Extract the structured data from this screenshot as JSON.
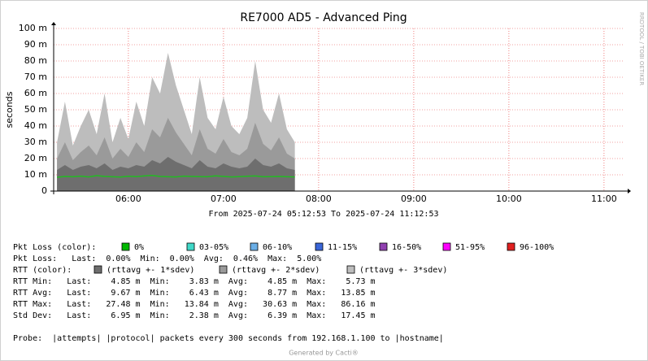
{
  "chart_data": {
    "type": "line",
    "title": "RE7000 AD5 - Advanced Ping",
    "y_label": "seconds",
    "side_label": "RRDTOOL / TOBI OETIKER",
    "time_caption": "From 2025-07-24 05:12:53 To 2025-07-24 11:12:53",
    "xlim": [
      "05:12:53",
      "11:12:53"
    ],
    "xticks": [
      "06:00",
      "07:00",
      "08:00",
      "09:00",
      "10:00",
      "11:00"
    ],
    "ylim": [
      0,
      0.1
    ],
    "yticks": [
      0,
      {
        "value": 0.01,
        "label": "10 m"
      },
      {
        "value": 0.02,
        "label": "20 m"
      },
      {
        "value": 0.03,
        "label": "30 m"
      },
      {
        "value": 0.04,
        "label": "40 m"
      },
      {
        "value": 0.05,
        "label": "50 m"
      },
      {
        "value": 0.06,
        "label": "60 m"
      },
      {
        "value": 0.07,
        "label": "70 m"
      },
      {
        "value": 0.08,
        "label": "80 m"
      },
      {
        "value": 0.09,
        "label": "90 m"
      },
      {
        "value": 0.1,
        "label": "100 m"
      }
    ],
    "grid": true,
    "x": [
      "05:15",
      "05:20",
      "05:25",
      "05:30",
      "05:35",
      "05:40",
      "05:45",
      "05:50",
      "05:55",
      "06:00",
      "06:05",
      "06:10",
      "06:15",
      "06:20",
      "06:25",
      "06:30",
      "06:35",
      "06:40",
      "06:45",
      "06:50",
      "06:55",
      "07:00",
      "07:05",
      "07:10",
      "07:15",
      "07:20",
      "07:25",
      "07:30",
      "07:35",
      "07:40",
      "07:45"
    ],
    "series": [
      {
        "name": "(rttavg +- 3*sdev)",
        "color": "#bdbdbd",
        "values": [
          0.03,
          0.055,
          0.028,
          0.04,
          0.05,
          0.035,
          0.06,
          0.03,
          0.045,
          0.032,
          0.055,
          0.04,
          0.07,
          0.06,
          0.085,
          0.065,
          0.05,
          0.035,
          0.07,
          0.045,
          0.038,
          0.058,
          0.04,
          0.035,
          0.045,
          0.08,
          0.05,
          0.042,
          0.06,
          0.038,
          0.03
        ]
      },
      {
        "name": "(rttavg +- 2*sdev)",
        "color": "#9a9a9a",
        "values": [
          0.02,
          0.03,
          0.019,
          0.024,
          0.028,
          0.022,
          0.033,
          0.02,
          0.026,
          0.021,
          0.03,
          0.024,
          0.038,
          0.033,
          0.045,
          0.036,
          0.029,
          0.022,
          0.038,
          0.026,
          0.023,
          0.032,
          0.024,
          0.022,
          0.026,
          0.042,
          0.029,
          0.025,
          0.033,
          0.023,
          0.02
        ]
      },
      {
        "name": "(rttavg +- 1*sdev)",
        "color": "#6e6e6e",
        "values": [
          0.013,
          0.016,
          0.013,
          0.015,
          0.016,
          0.014,
          0.017,
          0.013,
          0.015,
          0.014,
          0.016,
          0.015,
          0.019,
          0.017,
          0.021,
          0.018,
          0.016,
          0.014,
          0.019,
          0.015,
          0.014,
          0.017,
          0.015,
          0.014,
          0.015,
          0.02,
          0.016,
          0.015,
          0.017,
          0.014,
          0.013
        ]
      },
      {
        "name": "RTT Avg",
        "color": "#22bb22",
        "values": [
          0.0085,
          0.009,
          0.0088,
          0.0092,
          0.0087,
          0.0095,
          0.009,
          0.0088,
          0.0086,
          0.0091,
          0.0089,
          0.0093,
          0.0096,
          0.009,
          0.0088,
          0.0087,
          0.0092,
          0.009,
          0.0089,
          0.0088,
          0.0094,
          0.009,
          0.0087,
          0.0089,
          0.0091,
          0.0093,
          0.0088,
          0.0089,
          0.009,
          0.0088,
          0.0087
        ]
      }
    ],
    "loss_legend_label": "Pkt Loss (color):",
    "loss_legend": [
      {
        "name": "0%",
        "color": "#00b800"
      },
      {
        "name": "03-05%",
        "color": "#40d8c8"
      },
      {
        "name": "06-10%",
        "color": "#6aaee6"
      },
      {
        "name": "11-15%",
        "color": "#3a66d8"
      },
      {
        "name": "16-50%",
        "color": "#9040b0"
      },
      {
        "name": "51-95%",
        "color": "#ff00ff"
      },
      {
        "name": "96-100%",
        "color": "#e02020"
      }
    ],
    "rtt_legend_label": "RTT (color):",
    "stats": [
      "Pkt Loss:   Last:  0.00%  Min:  0.00%  Avg:  0.46%  Max:  5.00%",
      "RTT Min:   Last:    4.85 m  Min:    3.83 m  Avg:    4.85 m  Max:    5.73 m",
      "RTT Avg:   Last:    9.67 m  Min:    6.43 m  Avg:    8.77 m  Max:   13.85 m",
      "RTT Max:   Last:   27.48 m  Min:   13.84 m  Avg:   30.63 m  Max:   86.16 m",
      "Std Dev:   Last:    6.95 m  Min:    2.38 m  Avg:    6.39 m  Max:   17.45 m"
    ],
    "probe": "Probe:  |attempts| |protocol| packets every 300 seconds from 192.168.1.100 to |hostname|",
    "footer": "Generated by Cacti®"
  }
}
